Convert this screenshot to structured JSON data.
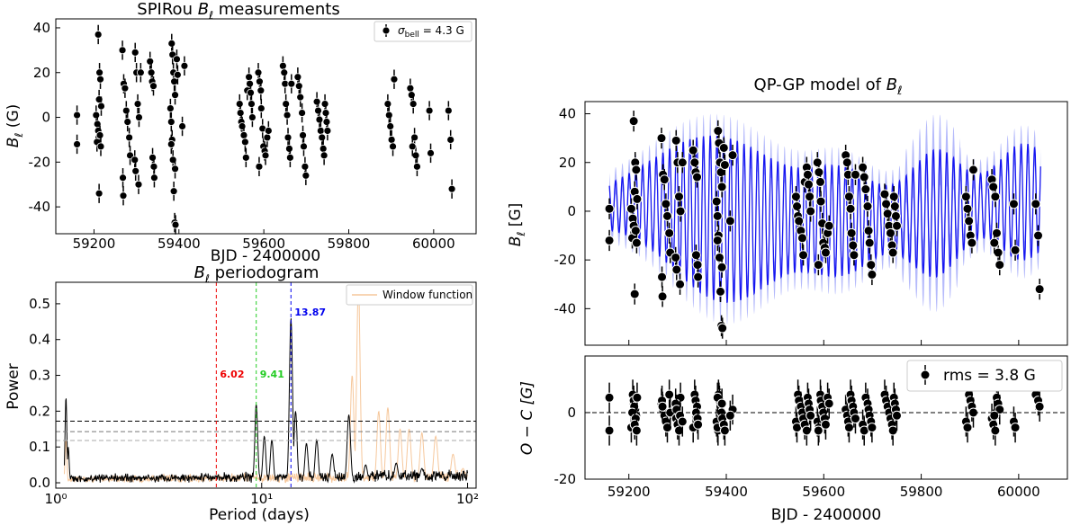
{
  "chart_data": [
    {
      "id": "measurements",
      "type": "scatter",
      "title_prefix": "SPIRou ",
      "title_sym": "B",
      "title_sub": "ℓ",
      "title_suffix": " measurements",
      "xlabel": "BJD - 2400000",
      "ylabel_sym": "B",
      "ylabel_sub": "ℓ",
      "ylabel_unit": " (G)",
      "xlim": [
        59110,
        60100
      ],
      "ylim": [
        -52,
        44
      ],
      "xticks": [
        59200,
        59400,
        59600,
        59800,
        60000
      ],
      "yticks": [
        -40,
        -20,
        0,
        20,
        40
      ],
      "legend": {
        "label_sym": "σ",
        "label_sub": "bell",
        "label_rest": " = 4.3 G",
        "position": "top-right"
      },
      "points": [
        [
          59160,
          1
        ],
        [
          59160,
          -12
        ],
        [
          59210,
          37
        ],
        [
          59213,
          20
        ],
        [
          59215,
          17
        ],
        [
          59212,
          8
        ],
        [
          59205,
          1
        ],
        [
          59208,
          -3
        ],
        [
          59210,
          -6
        ],
        [
          59211,
          -9
        ],
        [
          59207,
          -11
        ],
        [
          59214,
          -8
        ],
        [
          59212,
          -34
        ],
        [
          59216,
          -13
        ],
        [
          59217,
          5
        ],
        [
          59267,
          30
        ],
        [
          59270,
          15
        ],
        [
          59273,
          13
        ],
        [
          59276,
          3
        ],
        [
          59279,
          -2
        ],
        [
          59283,
          -9
        ],
        [
          59268,
          -27
        ],
        [
          59269,
          -35
        ],
        [
          59285,
          -17
        ],
        [
          59297,
          29
        ],
        [
          59300,
          20
        ],
        [
          59303,
          6
        ],
        [
          59306,
          0
        ],
        [
          59296,
          -19
        ],
        [
          59298,
          -24
        ],
        [
          59305,
          -30
        ],
        [
          59310,
          20
        ],
        [
          59332,
          25
        ],
        [
          59335,
          20
        ],
        [
          59337,
          16
        ],
        [
          59340,
          14
        ],
        [
          59338,
          -18
        ],
        [
          59341,
          -22
        ],
        [
          59342,
          -27
        ],
        [
          59383,
          33
        ],
        [
          59385,
          28
        ],
        [
          59387,
          20
        ],
        [
          59389,
          16
        ],
        [
          59391,
          10
        ],
        [
          59380,
          4
        ],
        [
          59382,
          -2
        ],
        [
          59384,
          -10
        ],
        [
          59386,
          -19
        ],
        [
          59388,
          -33
        ],
        [
          59390,
          -47
        ],
        [
          59392,
          -48
        ],
        [
          59395,
          26
        ],
        [
          59397,
          19
        ],
        [
          59382,
          -12
        ],
        [
          59391,
          -23
        ],
        [
          59413,
          23
        ],
        [
          59408,
          -4
        ],
        [
          59543,
          6
        ],
        [
          59545,
          2
        ],
        [
          59547,
          -2
        ],
        [
          59549,
          -4
        ],
        [
          59553,
          -8
        ],
        [
          59556,
          -11
        ],
        [
          59558,
          -18
        ],
        [
          59561,
          12
        ],
        [
          59565,
          18
        ],
        [
          59567,
          15
        ],
        [
          59569,
          11
        ],
        [
          59571,
          6
        ],
        [
          59573,
          0
        ],
        [
          59587,
          20
        ],
        [
          59590,
          16
        ],
        [
          59593,
          12
        ],
        [
          59594,
          4
        ],
        [
          59597,
          -5
        ],
        [
          59599,
          -13
        ],
        [
          59602,
          -15
        ],
        [
          59604,
          -17
        ],
        [
          59589,
          -22
        ],
        [
          59608,
          -9
        ],
        [
          59611,
          -6
        ],
        [
          59645,
          23
        ],
        [
          59648,
          20
        ],
        [
          59650,
          15
        ],
        [
          59652,
          6
        ],
        [
          59655,
          1
        ],
        [
          59657,
          -9
        ],
        [
          59660,
          -14
        ],
        [
          59662,
          -18
        ],
        [
          59665,
          15
        ],
        [
          59680,
          18
        ],
        [
          59683,
          14
        ],
        [
          59686,
          9
        ],
        [
          59690,
          2
        ],
        [
          59692,
          -8
        ],
        [
          59694,
          -13
        ],
        [
          59697,
          -22
        ],
        [
          59699,
          -26
        ],
        [
          59725,
          7
        ],
        [
          59728,
          3
        ],
        [
          59731,
          -1
        ],
        [
          59734,
          -6
        ],
        [
          59737,
          -9
        ],
        [
          59740,
          -14
        ],
        [
          59742,
          -17
        ],
        [
          59744,
          6
        ],
        [
          59746,
          2
        ],
        [
          59748,
          -2
        ],
        [
          59750,
          -6
        ],
        [
          59892,
          6
        ],
        [
          59895,
          1
        ],
        [
          59898,
          -4
        ],
        [
          59901,
          -10
        ],
        [
          59904,
          -13
        ],
        [
          59907,
          17
        ],
        [
          59945,
          13
        ],
        [
          59948,
          10
        ],
        [
          59952,
          6
        ],
        [
          59955,
          -9
        ],
        [
          59958,
          -17
        ],
        [
          59961,
          -22
        ],
        [
          59950,
          -13
        ],
        [
          59990,
          3
        ],
        [
          59993,
          -16
        ],
        [
          60035,
          3
        ],
        [
          60040,
          -10
        ],
        [
          60043,
          -32
        ]
      ]
    },
    {
      "id": "periodogram",
      "type": "line",
      "title_sym": "B",
      "title_sub": "ℓ",
      "title_suffix": " periodogram",
      "xlabel": "Period (days)",
      "ylabel": "Power",
      "xscale": "log",
      "xlim": [
        1,
        110
      ],
      "ylim": [
        -0.015,
        0.56
      ],
      "xticks": [
        1,
        10,
        100
      ],
      "xtick_labels": [
        "10⁰",
        "10¹",
        "10²"
      ],
      "yticks": [
        0.0,
        0.1,
        0.2,
        0.3,
        0.4,
        0.5
      ],
      "ytick_labels": [
        "0.0",
        "0.1",
        "0.2",
        "0.3",
        "0.4",
        "0.5"
      ],
      "fap_levels": [
        0.172,
        0.143,
        0.118
      ],
      "marked_periods": [
        {
          "period": 6.02,
          "label": "6.02",
          "color": "#ee0000"
        },
        {
          "period": 9.41,
          "label": "9.41",
          "color": "#22cc22"
        },
        {
          "period": 13.87,
          "label": "13.87",
          "color": "#0000ee"
        }
      ],
      "legend": {
        "label": "Window function",
        "position": "top-right"
      },
      "peaks": [
        [
          1.12,
          0.24
        ],
        [
          1.15,
          0.1
        ],
        [
          9.41,
          0.22
        ],
        [
          10.3,
          0.13
        ],
        [
          11.2,
          0.12
        ],
        [
          13.87,
          0.46
        ],
        [
          14.6,
          0.2
        ],
        [
          16.5,
          0.11
        ],
        [
          18.5,
          0.12
        ],
        [
          22,
          0.08
        ],
        [
          26.5,
          0.19
        ],
        [
          32,
          0.05
        ],
        [
          45,
          0.055
        ],
        [
          60,
          0.04
        ]
      ],
      "window_peaks": [
        [
          1.12,
          0.12
        ],
        [
          29.5,
          0.55
        ],
        [
          27.5,
          0.3
        ],
        [
          37,
          0.2
        ],
        [
          41,
          0.21
        ],
        [
          47,
          0.15
        ],
        [
          52,
          0.15
        ],
        [
          60,
          0.14
        ],
        [
          70,
          0.13
        ],
        [
          85,
          0.08
        ],
        [
          95,
          0.04
        ]
      ]
    },
    {
      "id": "gp_model",
      "type": "line",
      "title_prefix": "QP-GP model of ",
      "title_sym": "B",
      "title_sub": "ℓ",
      "ylabel_sym": "B",
      "ylabel_sub": "ℓ",
      "ylabel_unit": " [G]",
      "xlim": [
        59110,
        60100
      ],
      "ylim": [
        -55,
        45
      ],
      "yticks": [
        -40,
        -20,
        0,
        20,
        40
      ],
      "period": 13.87
    },
    {
      "id": "residuals",
      "type": "scatter",
      "xlabel": "BJD - 2400000",
      "ylabel": "O − C [G]",
      "xlim": [
        59110,
        60100
      ],
      "ylim": [
        -20,
        17
      ],
      "xticks": [
        59200,
        59400,
        59600,
        59800,
        60000
      ],
      "yticks": [
        -20,
        0
      ],
      "legend": {
        "label": "rms = 3.8 G",
        "position": "top-right"
      }
    }
  ]
}
